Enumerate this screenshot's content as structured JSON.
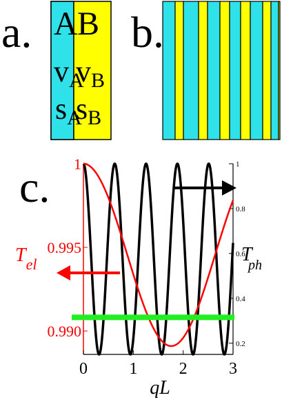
{
  "panel_a": {
    "label": "a.",
    "left": {
      "name": "A",
      "v": "v",
      "v_sub": "A",
      "s": "s",
      "s_sub": "A",
      "color": "#2fe2ea"
    },
    "right": {
      "name": "B",
      "v": "v",
      "v_sub": "B",
      "s": "s",
      "s_sub": "B",
      "color": "#ffff00"
    }
  },
  "panel_b": {
    "label": "b.",
    "stripe_colors": [
      "#2fe2ea",
      "#ffff00",
      "#2fe2ea",
      "#ffff00",
      "#2fe2ea",
      "#ffff00",
      "#2fe2ea",
      "#ffff00",
      "#2fe2ea",
      "#ffff00",
      "#2fe2ea",
      "#ffff00"
    ]
  },
  "panel_c": {
    "label": "c.",
    "colors": {
      "el": "#ff0000",
      "ph": "#000000",
      "threshold": "#22ee22"
    },
    "xlabel": "qL",
    "left_axis": {
      "label": "T",
      "sub": "el"
    },
    "right_axis": {
      "label": "T",
      "sub": "ph"
    }
  },
  "chart_data": {
    "type": "line",
    "x_ticks": [
      "0",
      "1",
      "2",
      "3"
    ],
    "left_ticks": [
      {
        "value": 0.99,
        "label": "0.990"
      },
      {
        "value": 0.995,
        "label": "0.995"
      },
      {
        "value": 1.0,
        "label": "1"
      }
    ],
    "right_ticks": [
      "0.2",
      "0.4",
      "0.6",
      "0.8",
      "1"
    ],
    "xlim": [
      0,
      3
    ],
    "left_ylim": [
      0.9886,
      1.0
    ],
    "right_ylim": [
      0.15,
      1.0
    ],
    "threshold_right_value": 0.315,
    "phonon_oscillation_period": 0.628,
    "electron_half_period": 1.76
  }
}
